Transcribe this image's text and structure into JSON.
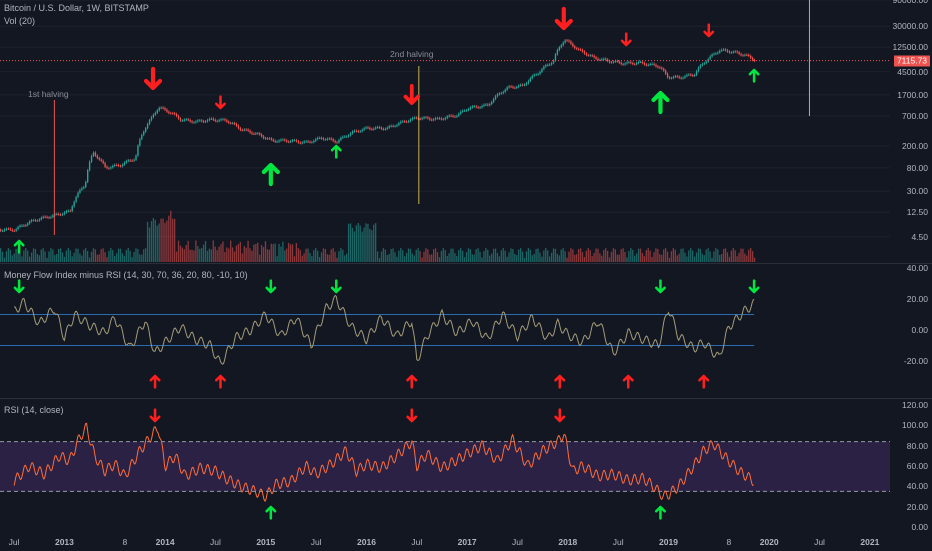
{
  "legends": {
    "main": "Bitcoin / U.S. Dollar, 1W, BITSTAMP",
    "vol": "Vol (20)",
    "mfi": "Money Flow Index minus RSI (14, 30, 70, 36, 20, 80, -10, 10)",
    "rsi": "RSI (14, close)"
  },
  "price_tag": "7115.73",
  "annotations": {
    "halving1": "1st halving",
    "halving2": "2nd halving"
  },
  "colors": {
    "background": "#131722",
    "up": "#26a69a",
    "down": "#ef5350",
    "arrow_up": "#00e640",
    "arrow_down": "#ff1f1f",
    "rsi_line": "#ff6d3a",
    "mfi_line": "#a39c79",
    "band_fill": "#4a2f6e"
  },
  "chart_data": [
    {
      "type": "line",
      "title": "Bitcoin / U.S. Dollar, 1W, BITSTAMP",
      "scale": "log",
      "y_ticks": [
        "90000.00",
        "30000.00",
        "12500.00",
        "4500.00",
        "1700.00",
        "700.00",
        "200.00",
        "80.00",
        "30.00",
        "12.50",
        "4.50"
      ],
      "ylim": [
        2,
        90000
      ],
      "x_ticks": [
        "Jul",
        "2013",
        "8",
        "2014",
        "Jul",
        "2015",
        "Jul",
        "2016",
        "Jul",
        "2017",
        "Jul",
        "2018",
        "Jul",
        "2019",
        "8",
        "2020",
        "Jul",
        "2021"
      ],
      "series": [
        {
          "x": [
            2012.5,
            2012.7,
            2012.9,
            2013.05,
            2013.2,
            2013.28,
            2013.4,
            2013.55,
            2013.7,
            2013.85,
            2013.93,
            2014.05,
            2014.15,
            2014.3,
            2014.45,
            2014.6,
            2014.75,
            2014.9,
            2015.05,
            2015.2,
            2015.4,
            2015.55,
            2015.7,
            2015.85,
            2016.0,
            2016.2,
            2016.4,
            2016.5,
            2016.7,
            2016.9,
            2017.0,
            2017.2,
            2017.4,
            2017.55,
            2017.7,
            2017.85,
            2017.96,
            2018.1,
            2018.25,
            2018.4,
            2018.55,
            2018.7,
            2018.9,
            2018.98,
            2019.1,
            2019.25,
            2019.4,
            2019.5,
            2019.6,
            2019.75,
            2019.85
          ],
          "values": [
            6,
            9,
            11,
            13,
            40,
            150,
            80,
            90,
            120,
            600,
            1000,
            800,
            600,
            550,
            600,
            580,
            400,
            330,
            250,
            250,
            230,
            280,
            240,
            350,
            420,
            420,
            580,
            650,
            610,
            730,
            970,
            1100,
            2300,
            2500,
            4300,
            7000,
            17000,
            11000,
            8000,
            7000,
            6300,
            6500,
            5600,
            3600,
            3500,
            4000,
            8000,
            11000,
            10500,
            9000,
            7300
          ]
        }
      ],
      "annotations": [
        "1st halving",
        "2nd halving"
      ],
      "last_value": 7115.73
    },
    {
      "type": "line",
      "title": "Money Flow Index minus RSI (14, 30, 70, 36, 20, 80, -10, 10)",
      "y_ticks": [
        "40.00",
        "20.00",
        "0.00",
        "-20.00"
      ],
      "ylim": [
        -40,
        40
      ],
      "bands": [
        10,
        -10
      ],
      "series": [
        {
          "x": [
            2012.5,
            2012.6,
            2012.75,
            2012.9,
            2013.0,
            2013.1,
            2013.25,
            2013.4,
            2013.5,
            2013.65,
            2013.8,
            2013.9,
            2014.0,
            2014.15,
            2014.3,
            2014.45,
            2014.55,
            2014.7,
            2014.85,
            2015.0,
            2015.15,
            2015.3,
            2015.45,
            2015.6,
            2015.7,
            2015.85,
            2016.0,
            2016.15,
            2016.3,
            2016.45,
            2016.5,
            2016.6,
            2016.75,
            2016.9,
            2017.05,
            2017.2,
            2017.35,
            2017.5,
            2017.65,
            2017.8,
            2017.9,
            2018.0,
            2018.15,
            2018.3,
            2018.45,
            2018.6,
            2018.75,
            2018.9,
            2019.0,
            2019.1,
            2019.25,
            2019.35,
            2019.5,
            2019.6,
            2019.75,
            2019.85
          ],
          "values": [
            12,
            18,
            4,
            14,
            -5,
            10,
            3,
            -2,
            8,
            -12,
            6,
            -15,
            -8,
            2,
            -6,
            -10,
            -22,
            -5,
            0,
            10,
            -4,
            8,
            -10,
            14,
            20,
            2,
            -6,
            8,
            -4,
            6,
            -20,
            -4,
            10,
            -2,
            6,
            -6,
            10,
            -4,
            8,
            -6,
            4,
            -3,
            -8,
            6,
            -15,
            -2,
            -6,
            -10,
            14,
            -4,
            -12,
            -8,
            -18,
            2,
            12,
            17
          ]
        }
      ]
    },
    {
      "type": "line",
      "title": "RSI (14, close)",
      "y_ticks": [
        "120.00",
        "100.00",
        "80.00",
        "60.00",
        "40.00",
        "20.00",
        "0.00"
      ],
      "ylim": [
        0,
        120
      ],
      "bands": [
        84,
        35
      ],
      "series": [
        {
          "x": [
            2012.5,
            2012.65,
            2012.8,
            2012.95,
            2013.05,
            2013.15,
            2013.22,
            2013.3,
            2013.4,
            2013.5,
            2013.6,
            2013.75,
            2013.85,
            2013.93,
            2014.0,
            2014.1,
            2014.2,
            2014.35,
            2014.5,
            2014.6,
            2014.75,
            2014.9,
            2015.0,
            2015.1,
            2015.25,
            2015.4,
            2015.5,
            2015.65,
            2015.8,
            2015.9,
            2016.0,
            2016.15,
            2016.3,
            2016.45,
            2016.5,
            2016.6,
            2016.75,
            2016.9,
            2017.0,
            2017.15,
            2017.3,
            2017.45,
            2017.6,
            2017.75,
            2017.9,
            2017.96,
            2018.05,
            2018.15,
            2018.3,
            2018.45,
            2018.6,
            2018.75,
            2018.85,
            2018.95,
            2019.0,
            2019.1,
            2019.25,
            2019.35,
            2019.45,
            2019.55,
            2019.7,
            2019.85
          ],
          "values": [
            45,
            60,
            52,
            70,
            65,
            88,
            98,
            70,
            55,
            62,
            50,
            75,
            88,
            98,
            60,
            70,
            50,
            58,
            55,
            48,
            40,
            35,
            30,
            42,
            45,
            60,
            52,
            62,
            75,
            55,
            62,
            58,
            70,
            84,
            60,
            72,
            58,
            66,
            72,
            80,
            65,
            86,
            60,
            75,
            84,
            92,
            55,
            60,
            50,
            52,
            46,
            48,
            40,
            30,
            32,
            40,
            60,
            75,
            82,
            70,
            55,
            45
          ]
        }
      ]
    }
  ]
}
